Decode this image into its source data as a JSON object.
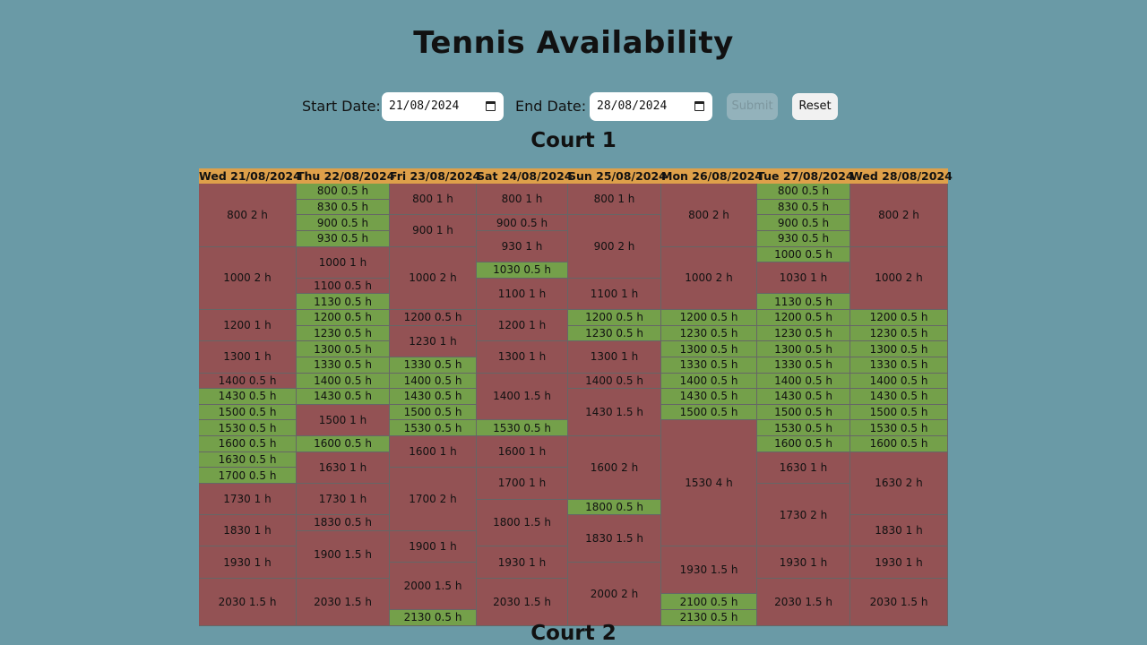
{
  "page": {
    "title": "Tennis Availability",
    "start_label": "Start Date:",
    "start_value": "21/08/2024",
    "end_label": "End Date:",
    "end_value": "28/08/2024",
    "submit_label": "Submit",
    "reset_label": "Reset"
  },
  "colors": {
    "background": "#6a9aa6",
    "header": "#dea04a",
    "booked": "#935254",
    "free": "#74a04a"
  },
  "courts": [
    {
      "name": "Court 1",
      "days": [
        {
          "label": "Wed 21/08/2024",
          "slots": [
            {
              "start": "800",
              "dur": 2,
              "status": "booked"
            },
            {
              "start": "1000",
              "dur": 2,
              "status": "booked"
            },
            {
              "start": "1200",
              "dur": 1,
              "status": "booked"
            },
            {
              "start": "1300",
              "dur": 1,
              "status": "booked"
            },
            {
              "start": "1400",
              "dur": 0.5,
              "status": "booked"
            },
            {
              "start": "1430",
              "dur": 0.5,
              "status": "free"
            },
            {
              "start": "1500",
              "dur": 0.5,
              "status": "free"
            },
            {
              "start": "1530",
              "dur": 0.5,
              "status": "free"
            },
            {
              "start": "1600",
              "dur": 0.5,
              "status": "free"
            },
            {
              "start": "1630",
              "dur": 0.5,
              "status": "free"
            },
            {
              "start": "1700",
              "dur": 0.5,
              "status": "free"
            },
            {
              "start": "1730",
              "dur": 1,
              "status": "booked"
            },
            {
              "start": "1830",
              "dur": 1,
              "status": "booked"
            },
            {
              "start": "1930",
              "dur": 1,
              "status": "booked"
            },
            {
              "start": "2030",
              "dur": 1.5,
              "status": "booked"
            }
          ]
        },
        {
          "label": "Thu 22/08/2024",
          "slots": [
            {
              "start": "800",
              "dur": 0.5,
              "status": "free"
            },
            {
              "start": "830",
              "dur": 0.5,
              "status": "free"
            },
            {
              "start": "900",
              "dur": 0.5,
              "status": "free"
            },
            {
              "start": "930",
              "dur": 0.5,
              "status": "free"
            },
            {
              "start": "1000",
              "dur": 1,
              "status": "booked"
            },
            {
              "start": "1100",
              "dur": 0.5,
              "status": "booked"
            },
            {
              "start": "1130",
              "dur": 0.5,
              "status": "free"
            },
            {
              "start": "1200",
              "dur": 0.5,
              "status": "free"
            },
            {
              "start": "1230",
              "dur": 0.5,
              "status": "free"
            },
            {
              "start": "1300",
              "dur": 0.5,
              "status": "free"
            },
            {
              "start": "1330",
              "dur": 0.5,
              "status": "free"
            },
            {
              "start": "1400",
              "dur": 0.5,
              "status": "free"
            },
            {
              "start": "1430",
              "dur": 0.5,
              "status": "free"
            },
            {
              "start": "1500",
              "dur": 1,
              "status": "booked"
            },
            {
              "start": "1600",
              "dur": 0.5,
              "status": "free"
            },
            {
              "start": "1630",
              "dur": 1,
              "status": "booked"
            },
            {
              "start": "1730",
              "dur": 1,
              "status": "booked"
            },
            {
              "start": "1830",
              "dur": 0.5,
              "status": "booked"
            },
            {
              "start": "1900",
              "dur": 1.5,
              "status": "booked"
            },
            {
              "start": "2030",
              "dur": 1.5,
              "status": "booked"
            }
          ]
        },
        {
          "label": "Fri 23/08/2024",
          "slots": [
            {
              "start": "800",
              "dur": 1,
              "status": "booked"
            },
            {
              "start": "900",
              "dur": 1,
              "status": "booked"
            },
            {
              "start": "1000",
              "dur": 2,
              "status": "booked"
            },
            {
              "start": "1200",
              "dur": 0.5,
              "status": "booked"
            },
            {
              "start": "1230",
              "dur": 1,
              "status": "booked"
            },
            {
              "start": "1330",
              "dur": 0.5,
              "status": "free"
            },
            {
              "start": "1400",
              "dur": 0.5,
              "status": "free"
            },
            {
              "start": "1430",
              "dur": 0.5,
              "status": "free"
            },
            {
              "start": "1500",
              "dur": 0.5,
              "status": "free"
            },
            {
              "start": "1530",
              "dur": 0.5,
              "status": "free"
            },
            {
              "start": "1600",
              "dur": 1,
              "status": "booked"
            },
            {
              "start": "1700",
              "dur": 2,
              "status": "booked"
            },
            {
              "start": "1900",
              "dur": 1,
              "status": "booked"
            },
            {
              "start": "2000",
              "dur": 1.5,
              "status": "booked"
            },
            {
              "start": "2130",
              "dur": 0.5,
              "status": "free"
            }
          ]
        },
        {
          "label": "Sat 24/08/2024",
          "slots": [
            {
              "start": "800",
              "dur": 1,
              "status": "booked"
            },
            {
              "start": "900",
              "dur": 0.5,
              "status": "booked"
            },
            {
              "start": "930",
              "dur": 1,
              "status": "booked"
            },
            {
              "start": "1030",
              "dur": 0.5,
              "status": "free"
            },
            {
              "start": "1100",
              "dur": 1,
              "status": "booked"
            },
            {
              "start": "1200",
              "dur": 1,
              "status": "booked"
            },
            {
              "start": "1300",
              "dur": 1,
              "status": "booked"
            },
            {
              "start": "1400",
              "dur": 1.5,
              "status": "booked"
            },
            {
              "start": "1530",
              "dur": 0.5,
              "status": "free"
            },
            {
              "start": "1600",
              "dur": 1,
              "status": "booked"
            },
            {
              "start": "1700",
              "dur": 1,
              "status": "booked"
            },
            {
              "start": "1800",
              "dur": 1.5,
              "status": "booked"
            },
            {
              "start": "1930",
              "dur": 1,
              "status": "booked"
            },
            {
              "start": "2030",
              "dur": 1.5,
              "status": "booked"
            }
          ]
        },
        {
          "label": "Sun 25/08/2024",
          "slots": [
            {
              "start": "800",
              "dur": 1,
              "status": "booked"
            },
            {
              "start": "900",
              "dur": 2,
              "status": "booked"
            },
            {
              "start": "1100",
              "dur": 1,
              "status": "booked"
            },
            {
              "start": "1200",
              "dur": 0.5,
              "status": "free"
            },
            {
              "start": "1230",
              "dur": 0.5,
              "status": "free"
            },
            {
              "start": "1300",
              "dur": 1,
              "status": "booked"
            },
            {
              "start": "1400",
              "dur": 0.5,
              "status": "booked"
            },
            {
              "start": "1430",
              "dur": 1.5,
              "status": "booked"
            },
            {
              "start": "1600",
              "dur": 2,
              "status": "booked"
            },
            {
              "start": "1800",
              "dur": 0.5,
              "status": "free"
            },
            {
              "start": "1830",
              "dur": 1.5,
              "status": "booked"
            },
            {
              "start": "2000",
              "dur": 2,
              "status": "booked"
            }
          ]
        },
        {
          "label": "Mon 26/08/2024",
          "slots": [
            {
              "start": "800",
              "dur": 2,
              "status": "booked"
            },
            {
              "start": "1000",
              "dur": 2,
              "status": "booked"
            },
            {
              "start": "1200",
              "dur": 0.5,
              "status": "free"
            },
            {
              "start": "1230",
              "dur": 0.5,
              "status": "free"
            },
            {
              "start": "1300",
              "dur": 0.5,
              "status": "free"
            },
            {
              "start": "1330",
              "dur": 0.5,
              "status": "free"
            },
            {
              "start": "1400",
              "dur": 0.5,
              "status": "free"
            },
            {
              "start": "1430",
              "dur": 0.5,
              "status": "free"
            },
            {
              "start": "1500",
              "dur": 0.5,
              "status": "free"
            },
            {
              "start": "1530",
              "dur": 4,
              "status": "booked"
            },
            {
              "start": "1930",
              "dur": 1.5,
              "status": "booked"
            },
            {
              "start": "2100",
              "dur": 0.5,
              "status": "free"
            },
            {
              "start": "2130",
              "dur": 0.5,
              "status": "free"
            }
          ]
        },
        {
          "label": "Tue 27/08/2024",
          "slots": [
            {
              "start": "800",
              "dur": 0.5,
              "status": "free"
            },
            {
              "start": "830",
              "dur": 0.5,
              "status": "free"
            },
            {
              "start": "900",
              "dur": 0.5,
              "status": "free"
            },
            {
              "start": "930",
              "dur": 0.5,
              "status": "free"
            },
            {
              "start": "1000",
              "dur": 0.5,
              "status": "free"
            },
            {
              "start": "1030",
              "dur": 1,
              "status": "booked"
            },
            {
              "start": "1130",
              "dur": 0.5,
              "status": "free"
            },
            {
              "start": "1200",
              "dur": 0.5,
              "status": "free"
            },
            {
              "start": "1230",
              "dur": 0.5,
              "status": "free"
            },
            {
              "start": "1300",
              "dur": 0.5,
              "status": "free"
            },
            {
              "start": "1330",
              "dur": 0.5,
              "status": "free"
            },
            {
              "start": "1400",
              "dur": 0.5,
              "status": "free"
            },
            {
              "start": "1430",
              "dur": 0.5,
              "status": "free"
            },
            {
              "start": "1500",
              "dur": 0.5,
              "status": "free"
            },
            {
              "start": "1530",
              "dur": 0.5,
              "status": "free"
            },
            {
              "start": "1600",
              "dur": 0.5,
              "status": "free"
            },
            {
              "start": "1630",
              "dur": 1,
              "status": "booked"
            },
            {
              "start": "1730",
              "dur": 2,
              "status": "booked"
            },
            {
              "start": "1930",
              "dur": 1,
              "status": "booked"
            },
            {
              "start": "2030",
              "dur": 1.5,
              "status": "booked"
            }
          ]
        },
        {
          "label": "Wed 28/08/2024",
          "slots": [
            {
              "start": "800",
              "dur": 2,
              "status": "booked"
            },
            {
              "start": "1000",
              "dur": 2,
              "status": "booked"
            },
            {
              "start": "1200",
              "dur": 0.5,
              "status": "free"
            },
            {
              "start": "1230",
              "dur": 0.5,
              "status": "free"
            },
            {
              "start": "1300",
              "dur": 0.5,
              "status": "free"
            },
            {
              "start": "1330",
              "dur": 0.5,
              "status": "free"
            },
            {
              "start": "1400",
              "dur": 0.5,
              "status": "free"
            },
            {
              "start": "1430",
              "dur": 0.5,
              "status": "free"
            },
            {
              "start": "1500",
              "dur": 0.5,
              "status": "free"
            },
            {
              "start": "1530",
              "dur": 0.5,
              "status": "free"
            },
            {
              "start": "1600",
              "dur": 0.5,
              "status": "free"
            },
            {
              "start": "1630",
              "dur": 2,
              "status": "booked"
            },
            {
              "start": "1830",
              "dur": 1,
              "status": "booked"
            },
            {
              "start": "1930",
              "dur": 1,
              "status": "booked"
            },
            {
              "start": "2030",
              "dur": 1.5,
              "status": "booked"
            }
          ]
        }
      ]
    },
    {
      "name": "Court 2",
      "days": []
    }
  ]
}
